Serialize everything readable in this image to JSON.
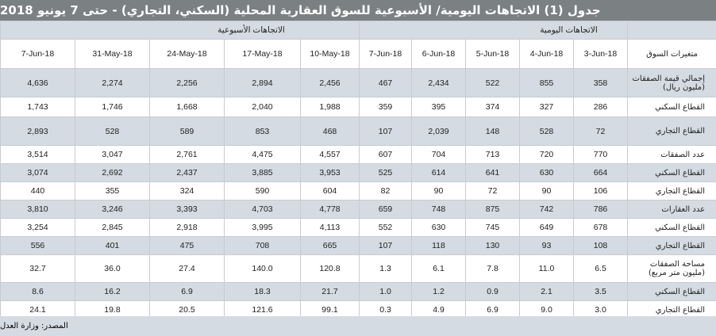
{
  "title": "جدول (1) الاتجاهات اليومية/ الأسبوعية  للسوق العقارية المحلية (السكني، التجاري) - حتى 7 يونيو 2018",
  "groups": {
    "weekly": "الاتجاهات الأسبوعية",
    "daily": "الاتجاهات اليومية"
  },
  "header": {
    "variables": "متغيرات السوق",
    "weekly_cols": [
      "7-Jun-18",
      "31-May-18",
      "24-May-18",
      "17-May-18",
      "10-May-18"
    ],
    "daily_cols": [
      "7-Jun-18",
      "6-Jun-18",
      "5-Jun-18",
      "4-Jun-18",
      "3-Jun-18"
    ]
  },
  "rows": [
    {
      "label": "إجمالي قيمة الصفقات (مليون ريال)",
      "shade": true,
      "weekly": [
        "4,636",
        "2,274",
        "2,256",
        "2,894",
        "2,456"
      ],
      "daily": [
        "467",
        "2,434",
        "522",
        "855",
        "358"
      ]
    },
    {
      "label": "القطاع السكني",
      "shade": false,
      "weekly": [
        "1,743",
        "1,746",
        "1,668",
        "2,040",
        "1,988"
      ],
      "daily": [
        "359",
        "395",
        "374",
        "327",
        "286"
      ]
    },
    {
      "label": "القطاع التجاري",
      "shade": true,
      "weekly": [
        "2,893",
        "528",
        "589",
        "853",
        "468"
      ],
      "daily": [
        "107",
        "2,039",
        "148",
        "528",
        "72"
      ]
    },
    {
      "label": "عدد الصفقات",
      "shade": false,
      "weekly": [
        "3,514",
        "3,047",
        "2,761",
        "4,475",
        "4,557"
      ],
      "daily": [
        "607",
        "704",
        "713",
        "720",
        "770"
      ]
    },
    {
      "label": "القطاع السكني",
      "shade": true,
      "weekly": [
        "3,074",
        "2,692",
        "2,437",
        "3,885",
        "3,953"
      ],
      "daily": [
        "525",
        "614",
        "641",
        "630",
        "664"
      ]
    },
    {
      "label": "القطاع التجاري",
      "shade": false,
      "weekly": [
        "440",
        "355",
        "324",
        "590",
        "604"
      ],
      "daily": [
        "82",
        "90",
        "72",
        "90",
        "106"
      ]
    },
    {
      "label": "عدد العقارات",
      "shade": true,
      "weekly": [
        "3,810",
        "3,246",
        "3,393",
        "4,703",
        "4,778"
      ],
      "daily": [
        "659",
        "748",
        "875",
        "742",
        "786"
      ]
    },
    {
      "label": "القطاع السكني",
      "shade": false,
      "weekly": [
        "3,254",
        "2,845",
        "2,918",
        "3,995",
        "4,113"
      ],
      "daily": [
        "552",
        "630",
        "745",
        "649",
        "678"
      ]
    },
    {
      "label": "القطاع التجاري",
      "shade": true,
      "weekly": [
        "556",
        "401",
        "475",
        "708",
        "665"
      ],
      "daily": [
        "107",
        "118",
        "130",
        "93",
        "108"
      ]
    },
    {
      "label": "مساحة الصفقات (مليون متر مربع)",
      "shade": false,
      "weekly": [
        "32.7",
        "36.0",
        "27.4",
        "140.0",
        "120.8"
      ],
      "daily": [
        "1.3",
        "6.1",
        "7.8",
        "11.0",
        "6.5"
      ]
    },
    {
      "label": "القطاع السكني",
      "shade": true,
      "weekly": [
        "8.6",
        "16.2",
        "6.9",
        "18.3",
        "21.7"
      ],
      "daily": [
        "1.0",
        "1.2",
        "0.9",
        "2.1",
        "3.5"
      ]
    },
    {
      "label": "القطاع التجاري",
      "shade": false,
      "weekly": [
        "24.1",
        "19.8",
        "20.5",
        "121.6",
        "99.1"
      ],
      "daily": [
        "0.3",
        "4.9",
        "6.9",
        "9.0",
        "3.0"
      ]
    }
  ],
  "source": "المصدر: وزارة العدل"
}
